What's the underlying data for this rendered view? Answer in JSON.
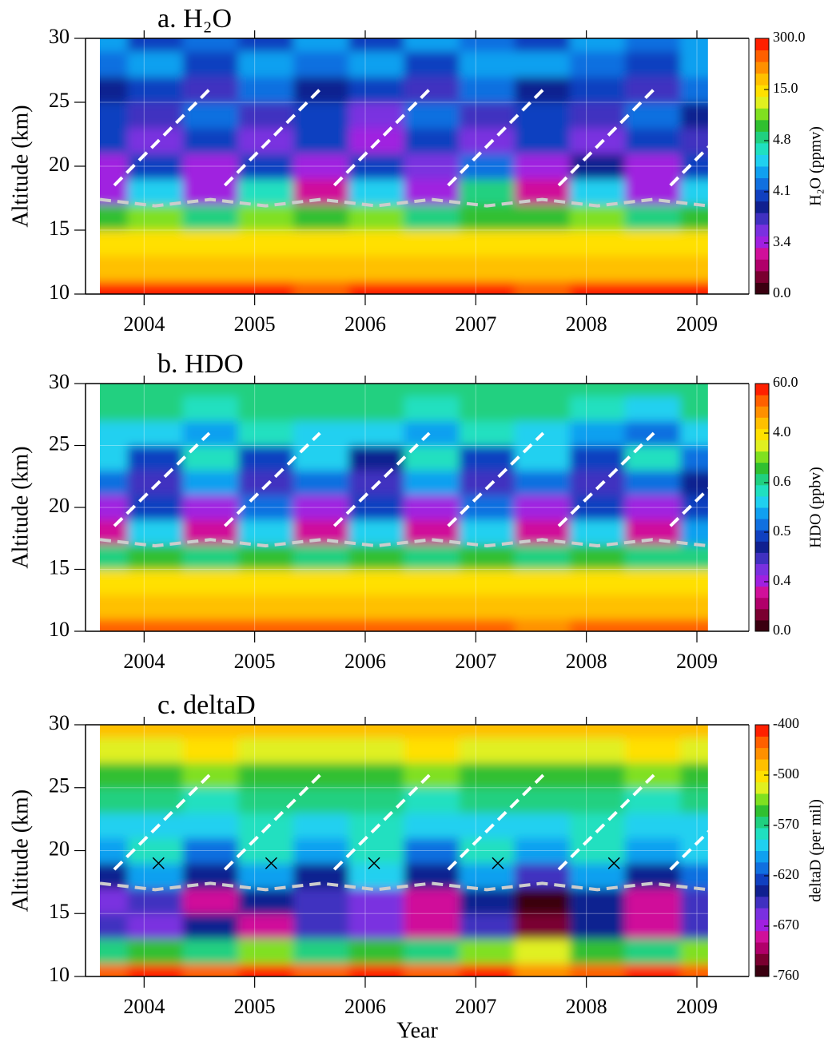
{
  "chart_data": [
    {
      "type": "contour",
      "title": "a. H₂O",
      "y_label": "Altitude (km)",
      "colorbar_label": "H₂O (ppmv)",
      "xlim": [
        2003.47,
        2009.47
      ],
      "xticks": [
        2004,
        2005,
        2006,
        2007,
        2008,
        2009
      ],
      "ylim": [
        10,
        30
      ],
      "yticks": [
        10,
        15,
        20,
        25,
        30
      ],
      "grid": true,
      "colorbar_ticks": [
        {
          "value": 0,
          "label": "0.0"
        },
        3.4,
        4.1,
        4.8,
        {
          "value": 15,
          "label": "15.0"
        },
        {
          "value": 300,
          "label": "300.0"
        }
      ],
      "colormap": [
        "#3a0010",
        "#7a0030",
        "#b0006a",
        "#d0109a",
        "#a020e0",
        "#7a30e0",
        "#4030c0",
        "#102090",
        "#1040c0",
        "#1070e0",
        "#10a0f0",
        "#20d0f0",
        "#20e0c0",
        "#20d080",
        "#30c030",
        "#80e020",
        "#e0f020",
        "#ffe000",
        "#ffc000",
        "#ff9000",
        "#ff6000",
        "#ff2000"
      ],
      "x": [
        2003.6,
        2004.1,
        2004.6,
        2005.1,
        2005.6,
        2006.1,
        2006.6,
        2007.1,
        2007.6,
        2008.1,
        2008.6,
        2009.1
      ],
      "y": [
        10,
        12,
        14,
        16,
        18,
        20,
        22,
        24,
        26,
        28,
        30
      ],
      "z": [
        [
          250,
          260,
          240,
          250,
          230,
          250,
          260,
          240,
          200,
          250,
          240,
          260
        ],
        [
          90,
          100,
          95,
          100,
          90,
          95,
          100,
          90,
          80,
          95,
          100,
          90
        ],
        [
          25,
          28,
          25,
          30,
          26,
          28,
          25,
          27,
          24,
          26,
          28,
          25
        ],
        [
          7,
          9,
          6,
          10,
          7,
          9,
          6,
          8,
          7,
          9,
          6,
          8
        ],
        [
          3.1,
          4.6,
          3.2,
          4.7,
          3.0,
          4.6,
          3.3,
          4.8,
          3.0,
          4.6,
          3.2,
          4.5
        ],
        [
          3.3,
          4.0,
          3.4,
          4.1,
          3.2,
          4.0,
          3.5,
          4.2,
          3.3,
          3.9,
          3.4,
          4.1
        ],
        [
          4.0,
          3.5,
          4.1,
          3.6,
          4.0,
          3.4,
          4.1,
          3.6,
          4.0,
          3.5,
          4.1,
          3.7
        ],
        [
          4.1,
          3.7,
          4.2,
          3.8,
          4.1,
          3.6,
          4.2,
          3.8,
          4.1,
          3.7,
          4.2,
          3.9
        ],
        [
          3.9,
          4.0,
          3.8,
          4.2,
          3.9,
          4.1,
          3.8,
          4.2,
          3.9,
          4.0,
          3.8,
          4.2
        ],
        [
          4.2,
          4.3,
          4.0,
          4.4,
          4.2,
          4.3,
          4.1,
          4.4,
          4.3,
          4.2,
          4.0,
          4.3
        ],
        [
          4.3,
          4.1,
          4.2,
          4.0,
          4.4,
          4.1,
          4.3,
          4.2,
          4.1,
          4.3,
          4.2,
          4.4
        ]
      ],
      "lines": [
        {
          "color": "#ffffff",
          "x": [
            2003.73,
            2004.59
          ],
          "y": [
            18.5,
            26
          ]
        },
        {
          "color": "#ffffff",
          "x": [
            2004.73,
            2005.59
          ],
          "y": [
            18.5,
            26
          ]
        },
        {
          "color": "#ffffff",
          "x": [
            2005.72,
            2006.58
          ],
          "y": [
            18.5,
            26
          ]
        },
        {
          "color": "#ffffff",
          "x": [
            2006.75,
            2007.61
          ],
          "y": [
            18.5,
            26
          ]
        },
        {
          "color": "#ffffff",
          "x": [
            2007.75,
            2008.61
          ],
          "y": [
            18.5,
            26
          ]
        },
        {
          "color": "#ffffff",
          "x": [
            2008.76,
            2009.62
          ],
          "y": [
            18.5,
            26
          ]
        },
        {
          "color": "#cccccc",
          "x": [
            2003.6,
            2004.1,
            2004.6,
            2005.1,
            2005.6,
            2006.1,
            2006.6,
            2007.1,
            2007.6,
            2008.1,
            2008.6,
            2009.1
          ],
          "y": [
            17.4,
            16.9,
            17.4,
            16.9,
            17.4,
            16.9,
            17.4,
            16.9,
            17.4,
            16.9,
            17.4,
            16.9
          ]
        }
      ]
    },
    {
      "type": "contour",
      "title": "b. HDO",
      "y_label": "Altitude (km)",
      "colorbar_label": "HDO (ppbv)",
      "xlim": [
        2003.47,
        2009.47
      ],
      "xticks": [
        2004,
        2005,
        2006,
        2007,
        2008,
        2009
      ],
      "ylim": [
        10,
        30
      ],
      "yticks": [
        10,
        15,
        20,
        25,
        30
      ],
      "grid": true,
      "colorbar_ticks": [
        {
          "value": 0,
          "label": "0.0"
        },
        0.4,
        0.5,
        0.6,
        {
          "value": 4,
          "label": "4.0"
        },
        {
          "value": 60,
          "label": "60.0"
        }
      ],
      "colormap": [
        "#3a0010",
        "#7a0030",
        "#b0006a",
        "#d0109a",
        "#a020e0",
        "#7a30e0",
        "#4030c0",
        "#102090",
        "#1040c0",
        "#1070e0",
        "#10a0f0",
        "#20d0f0",
        "#20e0c0",
        "#20d080",
        "#30c030",
        "#80e020",
        "#e0f020",
        "#ffe000",
        "#ffc000",
        "#ff9000",
        "#ff6000",
        "#ff2000"
      ],
      "x": [
        2003.6,
        2004.1,
        2004.6,
        2005.1,
        2005.6,
        2006.1,
        2006.6,
        2007.1,
        2007.6,
        2008.1,
        2008.6,
        2009.1
      ],
      "y": [
        10,
        12,
        14,
        16,
        18,
        20,
        22,
        24,
        26,
        28,
        30
      ],
      "z": [
        [
          35,
          40,
          38,
          40,
          36,
          40,
          38,
          35,
          30,
          38,
          40,
          36
        ],
        [
          12,
          14,
          13,
          15,
          12,
          14,
          13,
          12,
          10,
          13,
          14,
          12
        ],
        [
          4.5,
          5,
          4.6,
          5.2,
          4.5,
          5,
          4.4,
          4.8,
          4.2,
          4.9,
          4.6,
          4.7
        ],
        [
          0.9,
          1.5,
          0.8,
          1.6,
          0.9,
          1.4,
          0.8,
          1.3,
          0.7,
          1.5,
          0.8,
          1.2
        ],
        [
          0.34,
          0.56,
          0.36,
          0.57,
          0.33,
          0.55,
          0.36,
          0.56,
          0.32,
          0.55,
          0.35,
          0.54
        ],
        [
          0.38,
          0.5,
          0.4,
          0.51,
          0.37,
          0.5,
          0.4,
          0.52,
          0.38,
          0.49,
          0.4,
          0.5
        ],
        [
          0.52,
          0.44,
          0.53,
          0.45,
          0.52,
          0.44,
          0.53,
          0.45,
          0.51,
          0.44,
          0.52,
          0.46
        ],
        [
          0.57,
          0.49,
          0.58,
          0.5,
          0.57,
          0.48,
          0.58,
          0.5,
          0.57,
          0.49,
          0.58,
          0.51
        ],
        [
          0.56,
          0.55,
          0.53,
          0.58,
          0.55,
          0.56,
          0.53,
          0.58,
          0.55,
          0.54,
          0.52,
          0.57
        ],
        [
          0.62,
          0.6,
          0.58,
          0.63,
          0.61,
          0.6,
          0.59,
          0.62,
          0.6,
          0.58,
          0.57,
          0.62
        ],
        [
          0.8,
          0.7,
          0.75,
          0.68,
          0.8,
          0.72,
          0.76,
          0.7,
          0.78,
          0.72,
          0.7,
          0.8
        ]
      ],
      "lines": [
        {
          "color": "#ffffff",
          "x": [
            2003.73,
            2004.59
          ],
          "y": [
            18.5,
            26
          ]
        },
        {
          "color": "#ffffff",
          "x": [
            2004.73,
            2005.59
          ],
          "y": [
            18.5,
            26
          ]
        },
        {
          "color": "#ffffff",
          "x": [
            2005.72,
            2006.58
          ],
          "y": [
            18.5,
            26
          ]
        },
        {
          "color": "#ffffff",
          "x": [
            2006.75,
            2007.61
          ],
          "y": [
            18.5,
            26
          ]
        },
        {
          "color": "#ffffff",
          "x": [
            2007.75,
            2008.61
          ],
          "y": [
            18.5,
            26
          ]
        },
        {
          "color": "#ffffff",
          "x": [
            2008.76,
            2009.62
          ],
          "y": [
            18.5,
            26
          ]
        },
        {
          "color": "#cccccc",
          "x": [
            2003.6,
            2004.1,
            2004.6,
            2005.1,
            2005.6,
            2006.1,
            2006.6,
            2007.1,
            2007.6,
            2008.1,
            2008.6,
            2009.1
          ],
          "y": [
            17.4,
            16.9,
            17.4,
            16.9,
            17.4,
            16.9,
            17.4,
            16.9,
            17.4,
            16.9,
            17.4,
            16.9
          ]
        }
      ]
    },
    {
      "type": "contour",
      "title": "c. deltaD",
      "y_label": "Altitude (km)",
      "x_label": "Year",
      "colorbar_label": "deltaD (per mil)",
      "xlim": [
        2003.47,
        2009.47
      ],
      "xticks": [
        2004,
        2005,
        2006,
        2007,
        2008,
        2009
      ],
      "ylim": [
        10,
        30
      ],
      "yticks": [
        10,
        15,
        20,
        25,
        30
      ],
      "grid": true,
      "colorbar_ticks": [
        -760,
        -670,
        -620,
        -570,
        -500,
        -400
      ],
      "colormap": [
        "#3a0010",
        "#7a0030",
        "#b0006a",
        "#d0109a",
        "#a020e0",
        "#7a30e0",
        "#4030c0",
        "#102090",
        "#1040c0",
        "#1070e0",
        "#10a0f0",
        "#20d0f0",
        "#20e0c0",
        "#20d080",
        "#30c030",
        "#80e020",
        "#e0f020",
        "#ffe000",
        "#ffc000",
        "#ff9000",
        "#ff6000",
        "#ff2000"
      ],
      "x": [
        2003.6,
        2004.1,
        2004.6,
        2005.1,
        2005.6,
        2006.1,
        2006.6,
        2007.1,
        2007.6,
        2008.1,
        2008.6,
        2009.1
      ],
      "y": [
        10,
        12,
        14,
        16,
        18,
        20,
        22,
        24,
        26,
        28,
        30
      ],
      "z": [
        [
          -430,
          -420,
          -440,
          -410,
          -430,
          -420,
          -440,
          -420,
          -450,
          -430,
          -420,
          -440
        ],
        [
          -560,
          -550,
          -560,
          -540,
          -560,
          -550,
          -560,
          -540,
          -520,
          -550,
          -560,
          -540
        ],
        [
          -650,
          -660,
          -640,
          -680,
          -650,
          -660,
          -690,
          -650,
          -720,
          -640,
          -680,
          -650
        ],
        [
          -660,
          -650,
          -690,
          -640,
          -650,
          -660,
          -680,
          -640,
          -740,
          -640,
          -690,
          -650
        ],
        [
          -630,
          -600,
          -640,
          -600,
          -630,
          -590,
          -640,
          -600,
          -650,
          -600,
          -640,
          -610
        ],
        [
          -600,
          -580,
          -610,
          -580,
          -600,
          -575,
          -610,
          -580,
          -600,
          -580,
          -605,
          -590
        ],
        [
          -590,
          -585,
          -595,
          -580,
          -590,
          -580,
          -595,
          -585,
          -590,
          -580,
          -595,
          -590
        ],
        [
          -570,
          -565,
          -575,
          -560,
          -570,
          -560,
          -575,
          -565,
          -570,
          -560,
          -575,
          -570
        ],
        [
          -545,
          -550,
          -540,
          -555,
          -545,
          -550,
          -540,
          -555,
          -545,
          -550,
          -540,
          -555
        ],
        [
          -520,
          -510,
          -500,
          -515,
          -520,
          -510,
          -505,
          -515,
          -520,
          -510,
          -505,
          -515
        ],
        [
          -490,
          -480,
          -470,
          -490,
          -480,
          -470,
          -490,
          -480,
          -470,
          -490,
          -480,
          -470
        ]
      ],
      "markers": {
        "x": [
          2004.13,
          2005.15,
          2006.08,
          2007.2,
          2008.25
        ],
        "y": [
          19,
          19,
          19,
          19,
          19
        ]
      },
      "lines": [
        {
          "color": "#ffffff",
          "x": [
            2003.73,
            2004.59
          ],
          "y": [
            18.5,
            26
          ]
        },
        {
          "color": "#ffffff",
          "x": [
            2004.73,
            2005.59
          ],
          "y": [
            18.5,
            26
          ]
        },
        {
          "color": "#ffffff",
          "x": [
            2005.72,
            2006.58
          ],
          "y": [
            18.5,
            26
          ]
        },
        {
          "color": "#ffffff",
          "x": [
            2006.75,
            2007.61
          ],
          "y": [
            18.5,
            26
          ]
        },
        {
          "color": "#ffffff",
          "x": [
            2007.75,
            2008.61
          ],
          "y": [
            18.5,
            26
          ]
        },
        {
          "color": "#ffffff",
          "x": [
            2008.76,
            2009.62
          ],
          "y": [
            18.5,
            26
          ]
        },
        {
          "color": "#cccccc",
          "x": [
            2003.6,
            2004.1,
            2004.6,
            2005.1,
            2005.6,
            2006.1,
            2006.6,
            2007.1,
            2007.6,
            2008.1,
            2008.6,
            2009.1
          ],
          "y": [
            17.4,
            16.9,
            17.4,
            16.9,
            17.4,
            16.9,
            17.4,
            16.9,
            17.4,
            16.9,
            17.4,
            16.9
          ]
        }
      ]
    }
  ]
}
